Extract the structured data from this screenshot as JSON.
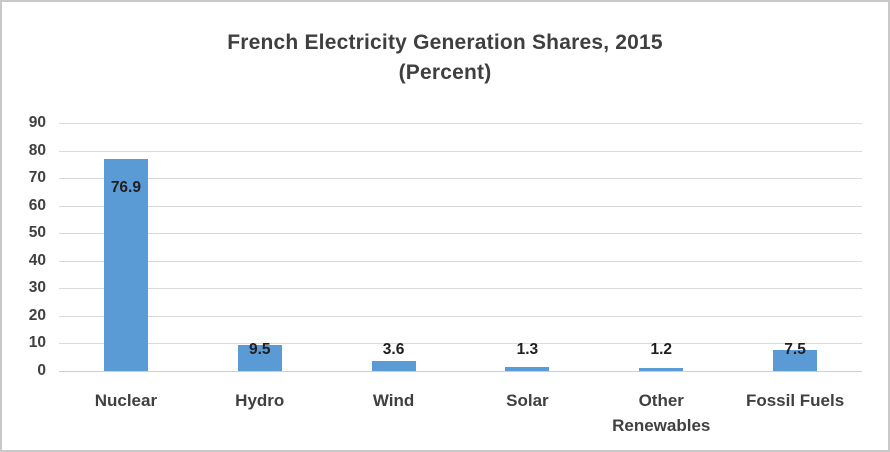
{
  "window": {
    "background": "#ffffff",
    "border_color": "#c9c9c9"
  },
  "chart_data": {
    "type": "bar",
    "title": "French Electricity Generation Shares, 2015",
    "subtitle": "(Percent)",
    "categories": [
      "Nuclear",
      "Hydro",
      "Wind",
      "Solar",
      "Other Renewables",
      "Fossil Fuels"
    ],
    "values": [
      76.9,
      9.5,
      3.6,
      1.3,
      1.2,
      7.5
    ],
    "data_labels": [
      "76.9",
      "9.5",
      "3.6",
      "1.3",
      "1.2",
      "7.5"
    ],
    "xlabel": "",
    "ylabel": "",
    "ylim": [
      0,
      90
    ],
    "ytick_step": 10,
    "yticks": [
      "0",
      "10",
      "20",
      "30",
      "40",
      "50",
      "60",
      "70",
      "80",
      "90"
    ],
    "grid": true,
    "legend": "none",
    "data_label_placement": "inside-end",
    "colors": {
      "bar": "#5B9BD5",
      "gridline": "#dadada",
      "baseline": "#cfcfcf",
      "title_text": "#3f3f3f",
      "axis_text": "#404040",
      "data_label_text": "#1f1f1f"
    }
  }
}
